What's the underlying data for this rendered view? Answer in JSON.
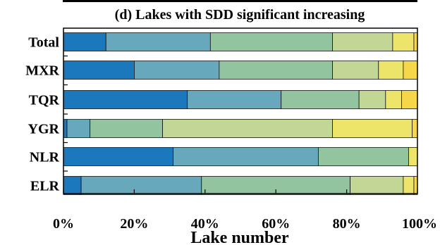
{
  "chart_data": {
    "type": "bar",
    "orientation": "horizontal",
    "stacked": true,
    "title": "(d) Lakes with SDD significant increasing",
    "xlabel": "Lake number",
    "ylabel": "",
    "xlim": [
      0,
      100
    ],
    "x_tick_labels": [
      "0%",
      "20%",
      "40%",
      "60%",
      "80%",
      "100%"
    ],
    "categories": [
      "Total",
      "MXR",
      "TQR",
      "YGR",
      "NLR",
      "ELR"
    ],
    "grid": false,
    "legend": "none",
    "segment_colors": [
      "#1b78bc",
      "#67a8bc",
      "#93c4a0",
      "#c2d696",
      "#ede46a",
      "#f7d74a"
    ],
    "series": [
      {
        "values": [
          12,
          20,
          35,
          1,
          31,
          5
        ]
      },
      {
        "values": [
          29.5,
          24,
          26.5,
          6.5,
          41,
          34
        ]
      },
      {
        "values": [
          34.5,
          32,
          22,
          20.5,
          25.5,
          42
        ]
      },
      {
        "values": [
          17,
          13,
          7.5,
          48,
          0,
          15
        ]
      },
      {
        "values": [
          6,
          7,
          4.5,
          22.5,
          2.5,
          3
        ]
      },
      {
        "values": [
          1,
          4,
          4.5,
          1.5,
          0,
          1
        ]
      }
    ]
  }
}
